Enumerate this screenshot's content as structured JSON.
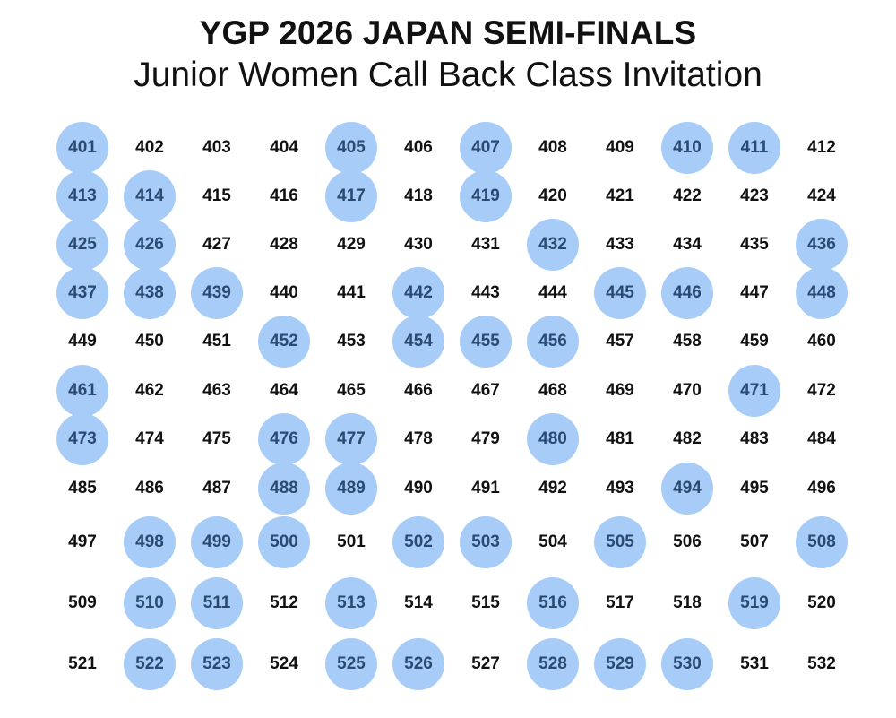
{
  "header": {
    "title": "YGP 2026 JAPAN SEMI-FINALS",
    "subtitle": "Junior Women Call Back Class Invitation"
  },
  "colors": {
    "highlight": "#a6ccf7",
    "highlight_text": "#2a4a72",
    "text": "#111111",
    "background": "#ffffff"
  },
  "numbers": [
    [
      401,
      402,
      403,
      404,
      405,
      406,
      407,
      408,
      409,
      410,
      411,
      412
    ],
    [
      413,
      414,
      415,
      416,
      417,
      418,
      419,
      420,
      421,
      422,
      423,
      424
    ],
    [
      425,
      426,
      427,
      428,
      429,
      430,
      431,
      432,
      433,
      434,
      435,
      436
    ],
    [
      437,
      438,
      439,
      440,
      441,
      442,
      443,
      444,
      445,
      446,
      447,
      448
    ],
    [
      449,
      450,
      451,
      452,
      453,
      454,
      455,
      456,
      457,
      458,
      459,
      460
    ],
    [
      461,
      462,
      463,
      464,
      465,
      466,
      467,
      468,
      469,
      470,
      471,
      472
    ],
    [
      473,
      474,
      475,
      476,
      477,
      478,
      479,
      480,
      481,
      482,
      483,
      484
    ],
    [
      485,
      486,
      487,
      488,
      489,
      490,
      491,
      492,
      493,
      494,
      495,
      496
    ],
    [
      497,
      498,
      499,
      500,
      501,
      502,
      503,
      504,
      505,
      506,
      507,
      508
    ],
    [
      509,
      510,
      511,
      512,
      513,
      514,
      515,
      516,
      517,
      518,
      519,
      520
    ],
    [
      521,
      522,
      523,
      524,
      525,
      526,
      527,
      528,
      529,
      530,
      531,
      532
    ]
  ],
  "called_back": [
    401,
    405,
    407,
    410,
    411,
    413,
    414,
    417,
    419,
    425,
    426,
    432,
    436,
    437,
    438,
    439,
    442,
    445,
    446,
    448,
    452,
    454,
    455,
    456,
    461,
    471,
    473,
    476,
    477,
    480,
    488,
    489,
    494,
    498,
    499,
    500,
    502,
    503,
    505,
    508,
    510,
    511,
    513,
    516,
    519,
    522,
    523,
    525,
    526,
    528,
    529,
    530
  ]
}
